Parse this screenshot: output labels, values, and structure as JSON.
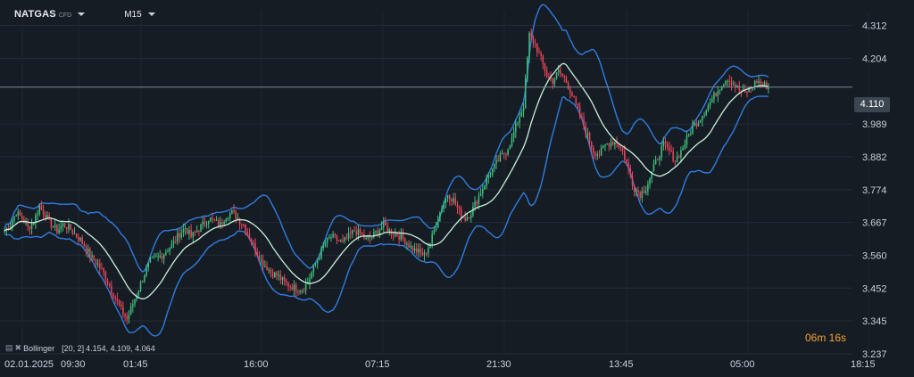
{
  "header": {
    "symbol": "NATGAS",
    "symbol_tag": "CFD",
    "timeframe": "M15"
  },
  "price_axis": {
    "ticks": [
      "4.312",
      "4.204",
      "3.989",
      "3.882",
      "3.774",
      "3.667",
      "3.560",
      "3.452",
      "3.345",
      "3.237"
    ],
    "current_price": "4.110"
  },
  "time_axis": {
    "ticks": [
      "02.01.2025",
      "09:30",
      "01:45",
      "16:00",
      "07:15",
      "21:30",
      "13:45",
      "05:00",
      "18:15"
    ]
  },
  "indicator": {
    "name": "Bollinger",
    "params": "[20, 2]",
    "values": "4.154,  4.109,  4.064"
  },
  "countdown": "06m 16s",
  "colors": {
    "background": "#161c23",
    "bullish": "#3fbf7f",
    "bearish": "#e8455a",
    "band": "#2f7de1",
    "mid_line": "#c8f0dc",
    "countdown": "#f5a233"
  },
  "chart_data": {
    "type": "candlestick",
    "ylim": [
      3.237,
      4.36
    ],
    "close_series": [
      3.64,
      3.66,
      3.7,
      3.68,
      3.65,
      3.67,
      3.72,
      3.69,
      3.66,
      3.64,
      3.66,
      3.65,
      3.63,
      3.61,
      3.58,
      3.55,
      3.53,
      3.5,
      3.46,
      3.42,
      3.38,
      3.35,
      3.4,
      3.45,
      3.5,
      3.54,
      3.55,
      3.56,
      3.58,
      3.6,
      3.63,
      3.65,
      3.62,
      3.64,
      3.66,
      3.68,
      3.67,
      3.66,
      3.69,
      3.7,
      3.68,
      3.66,
      3.62,
      3.58,
      3.54,
      3.52,
      3.5,
      3.49,
      3.47,
      3.46,
      3.45,
      3.45,
      3.47,
      3.52,
      3.56,
      3.6,
      3.62,
      3.61,
      3.6,
      3.62,
      3.64,
      3.63,
      3.61,
      3.62,
      3.64,
      3.66,
      3.64,
      3.63,
      3.62,
      3.6,
      3.58,
      3.57,
      3.56,
      3.6,
      3.66,
      3.72,
      3.76,
      3.74,
      3.7,
      3.68,
      3.7,
      3.74,
      3.78,
      3.82,
      3.85,
      3.88,
      3.9,
      3.94,
      4.0,
      4.05,
      4.28,
      4.25,
      4.2,
      4.15,
      4.13,
      4.16,
      4.14,
      4.1,
      4.05,
      4.0,
      3.95,
      3.9,
      3.89,
      3.92,
      3.93,
      3.93,
      3.9,
      3.84,
      3.78,
      3.76,
      3.78,
      3.83,
      3.88,
      3.92,
      3.9,
      3.87,
      3.9,
      3.94,
      3.98,
      4.0,
      4.03,
      4.06,
      4.09,
      4.12,
      4.14,
      4.12,
      4.1,
      4.09,
      4.11,
      4.13,
      4.12,
      4.11
    ],
    "bollinger": {
      "period": 20,
      "stddev": 2,
      "upper": 4.154,
      "middle": 4.109,
      "lower": 4.064
    }
  }
}
